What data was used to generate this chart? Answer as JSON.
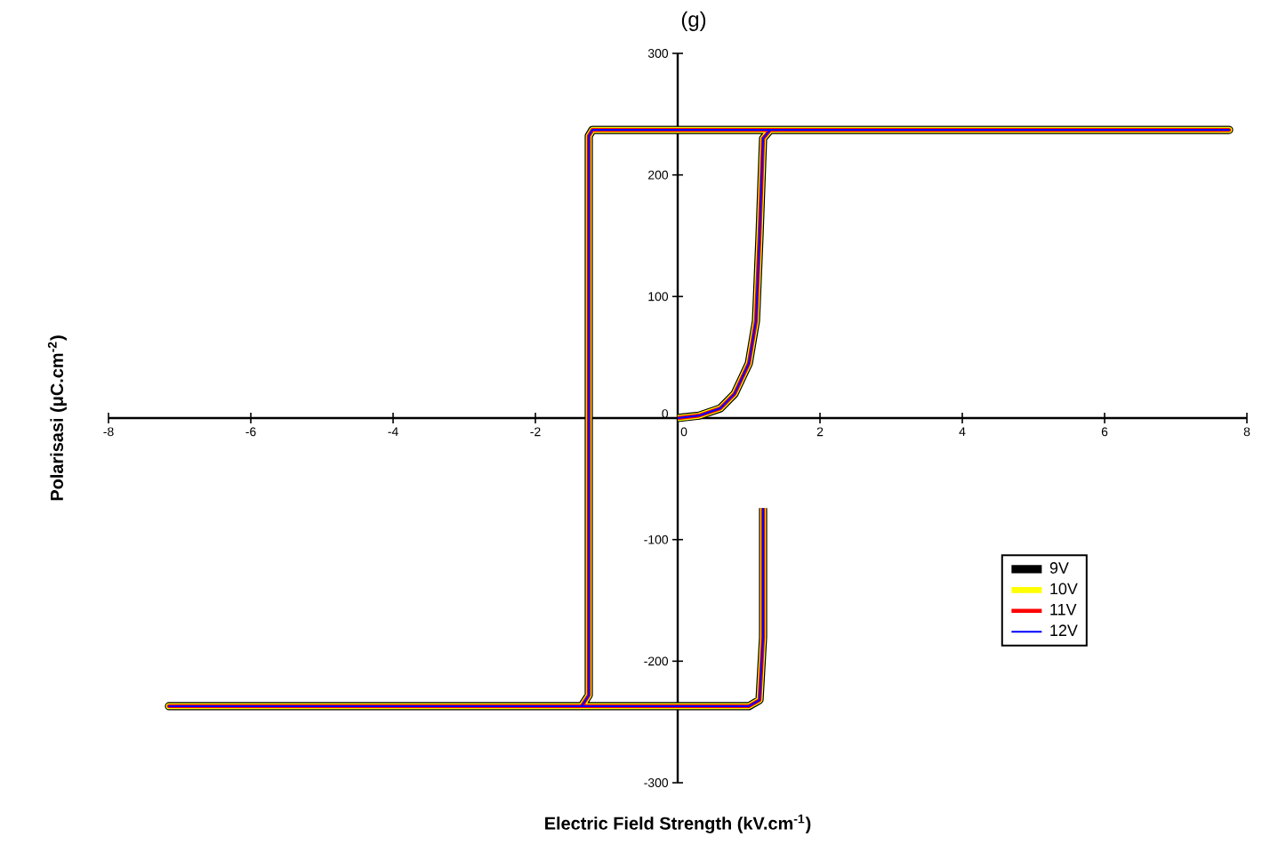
{
  "chart_data": {
    "type": "line",
    "title": "(g)",
    "xlabel": "Electric Field Strength (kV.cm$^{-1}$)",
    "ylabel": "Polarisasi (μC.cm$^{-2}$)",
    "xlim": [
      -8,
      8
    ],
    "ylim": [
      -300,
      300
    ],
    "xticks": [
      -8,
      -6,
      -4,
      -2,
      0,
      2,
      4,
      6,
      8
    ],
    "yticks": [
      -300,
      -200,
      -100,
      0,
      100,
      200,
      300
    ],
    "legend": "bottom right",
    "grid": false,
    "marker": "none",
    "line_style": "solid",
    "series": [
      {
        "name": "9V",
        "color": "#000000",
        "x": [
          0,
          0.3,
          0.6,
          0.8,
          1.0,
          1.1,
          1.15,
          1.2,
          1.3,
          7.75,
          -1.2,
          -1.25,
          -1.25,
          -1.35,
          -7.15,
          1.0,
          1.15,
          1.2,
          1.2
        ],
        "values": [
          0,
          2,
          8,
          20,
          45,
          80,
          150,
          230,
          237,
          237,
          237,
          232,
          -228,
          -237,
          -237,
          -237,
          -232,
          -180,
          -74
        ]
      },
      {
        "name": "10V",
        "color": "#ffff00",
        "x": [
          0,
          0.3,
          0.6,
          0.8,
          1.0,
          1.1,
          1.15,
          1.2,
          1.3,
          7.75,
          -1.2,
          -1.25,
          -1.25,
          -1.35,
          -7.15,
          1.0,
          1.15,
          1.2,
          1.2
        ],
        "values": [
          0,
          2,
          8,
          20,
          45,
          80,
          150,
          230,
          237,
          237,
          237,
          232,
          -228,
          -237,
          -237,
          -237,
          -232,
          -180,
          -74
        ]
      },
      {
        "name": "11V",
        "color": "#ff0000",
        "x": [
          0,
          0.3,
          0.6,
          0.8,
          1.0,
          1.1,
          1.15,
          1.2,
          1.3,
          7.75,
          -1.2,
          -1.25,
          -1.25,
          -1.35,
          -7.15,
          1.0,
          1.15,
          1.2,
          1.2
        ],
        "values": [
          0,
          2,
          8,
          20,
          45,
          80,
          150,
          230,
          237,
          237,
          237,
          232,
          -228,
          -237,
          -237,
          -237,
          -232,
          -180,
          -74
        ]
      },
      {
        "name": "12V",
        "color": "#0000ff",
        "x": [
          0,
          0.3,
          0.6,
          0.8,
          1.0,
          1.1,
          1.15,
          1.2,
          1.3,
          7.75,
          -1.2,
          -1.25,
          -1.25,
          -1.35,
          -7.15,
          1.0,
          1.15,
          1.2,
          1.2
        ],
        "values": [
          0,
          2,
          8,
          20,
          45,
          80,
          150,
          230,
          237,
          237,
          237,
          232,
          -228,
          -237,
          -237,
          -237,
          -232,
          -180,
          -74
        ]
      }
    ]
  }
}
